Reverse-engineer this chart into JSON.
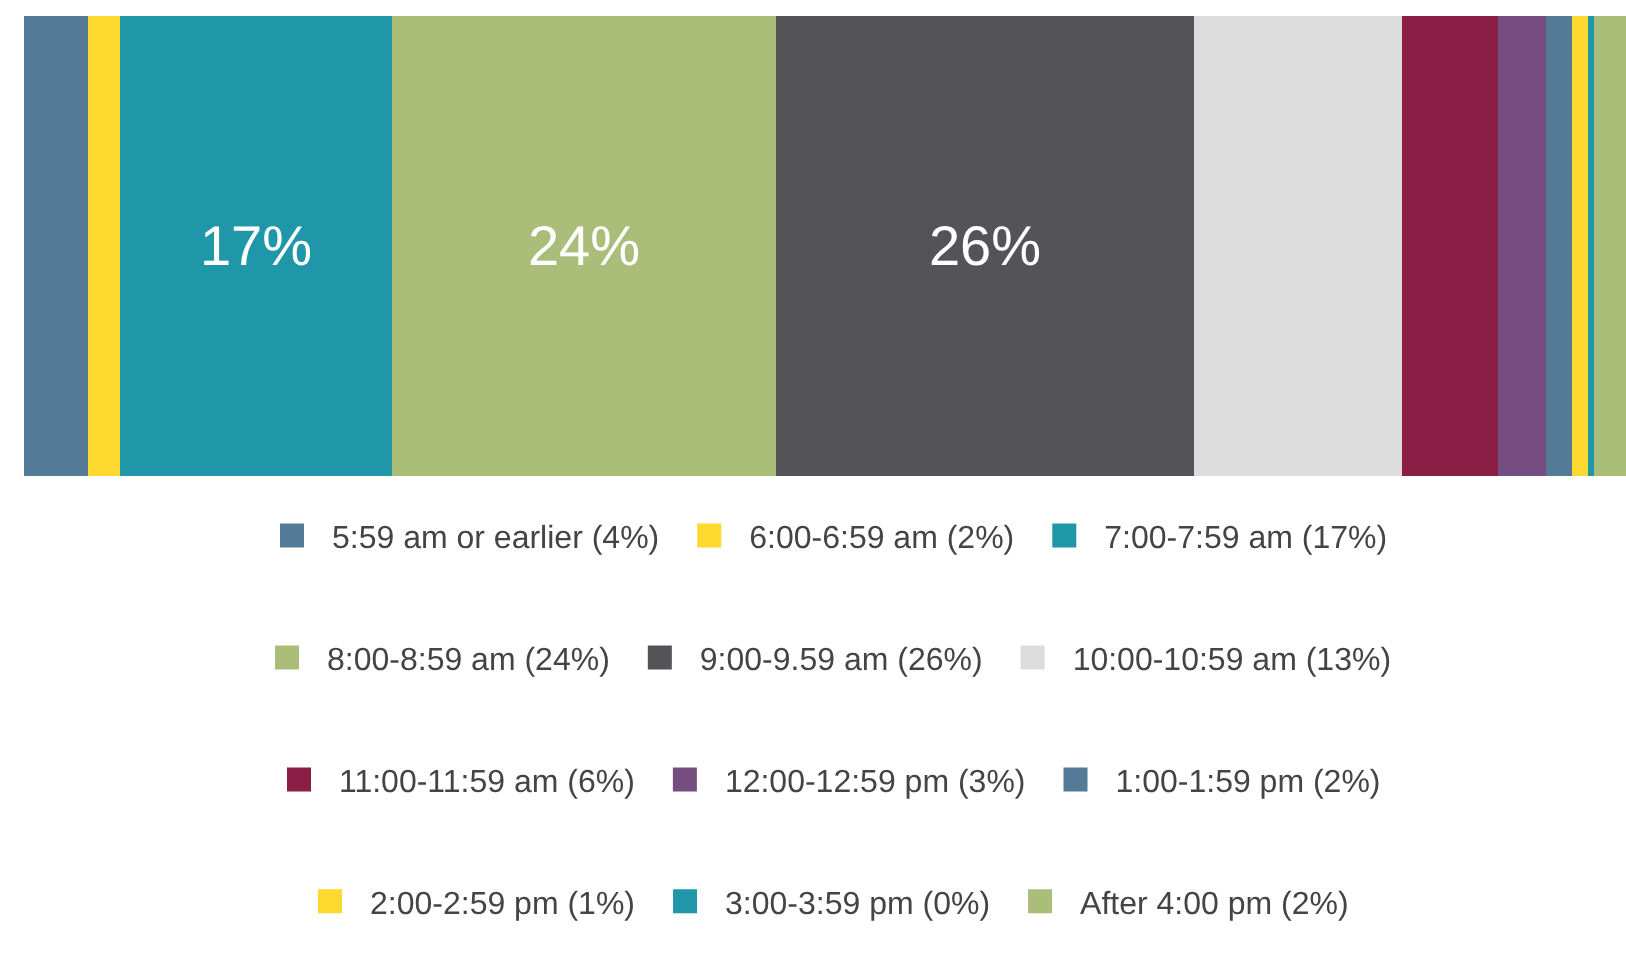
{
  "chart_data": {
    "type": "bar",
    "orientation": "horizontal",
    "stacked": true,
    "categories": [
      null
    ],
    "legend": "bottom",
    "tick_labels": false,
    "series": [
      {
        "name": "5:59 am or earlier (4%)",
        "color": "#537a96",
        "values": [
          4
        ]
      },
      {
        "name": "6:00-6:59 am (2%)",
        "color": "#fdd82e",
        "values": [
          2
        ]
      },
      {
        "name": "7:00-7:59 am (17%)",
        "color": "#1f97a8",
        "values": [
          17
        ],
        "value_labels": [
          "17%"
        ]
      },
      {
        "name": "8:00-8:59 am (24%)",
        "color": "#abbe79",
        "values": [
          24
        ],
        "value_labels": [
          "24%"
        ]
      },
      {
        "name": "9:00-9.59 am (26%)",
        "color": "#545458",
        "values": [
          26
        ],
        "value_labels": [
          "26%"
        ]
      },
      {
        "name": "10:00-10:59 am (13%)",
        "color": "#dcdcdc",
        "values": [
          13
        ]
      },
      {
        "name": "11:00-11:59 am (6%)",
        "color": "#8b1e45",
        "values": [
          6
        ]
      },
      {
        "name": "12:00-12:59 pm (3%)",
        "color": "#754d80",
        "values": [
          3
        ]
      },
      {
        "name": "1:00-1:59 pm (2%)",
        "color": "#537a96",
        "values": [
          1.6
        ]
      },
      {
        "name": "2:00-2:59 pm (1%)",
        "color": "#fdd82e",
        "values": [
          1
        ]
      },
      {
        "name": "3:00-3:59 pm (0%)",
        "color": "#1f97a8",
        "values": [
          0.4
        ]
      },
      {
        "name": "After 4:00 pm (2%)",
        "color": "#abbe79",
        "values": [
          2
        ]
      }
    ]
  }
}
